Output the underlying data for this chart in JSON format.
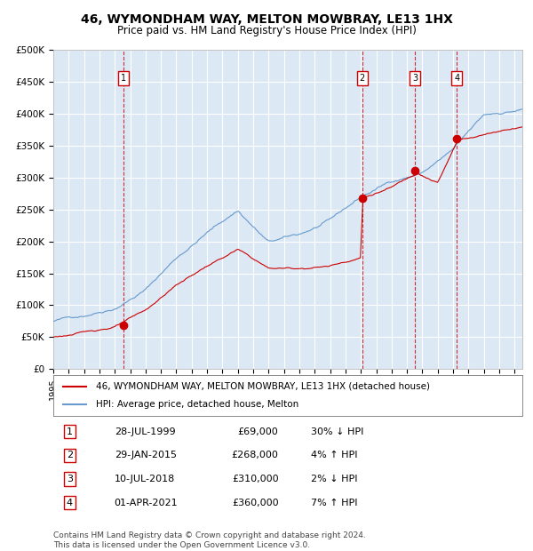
{
  "title": "46, WYMONDHAM WAY, MELTON MOWBRAY, LE13 1HX",
  "subtitle": "Price paid vs. HM Land Registry's House Price Index (HPI)",
  "legend_line1": "46, WYMONDHAM WAY, MELTON MOWBRAY, LE13 1HX (detached house)",
  "legend_line2": "HPI: Average price, detached house, Melton",
  "footer1": "Contains HM Land Registry data © Crown copyright and database right 2024.",
  "footer2": "This data is licensed under the Open Government Licence v3.0.",
  "transactions": [
    {
      "num": 1,
      "date": "28-JUL-1999",
      "price": 69000,
      "pct": "30%",
      "dir": "↓",
      "year": 1999.57
    },
    {
      "num": 2,
      "date": "29-JAN-2015",
      "price": 268000,
      "pct": "4%",
      "dir": "↑",
      "year": 2015.08
    },
    {
      "num": 3,
      "date": "10-JUL-2018",
      "price": 310000,
      "pct": "2%",
      "dir": "↓",
      "year": 2018.52
    },
    {
      "num": 4,
      "date": "01-APR-2021",
      "price": 360000,
      "pct": "7%",
      "dir": "↑",
      "year": 2021.25
    }
  ],
  "hpi_color": "#6699cc",
  "price_color": "#cc0000",
  "bg_color": "#dce9f5",
  "grid_color": "#ffffff",
  "ylim": [
    0,
    500000
  ],
  "xlim_start": 1995.0,
  "xlim_end": 2025.5
}
